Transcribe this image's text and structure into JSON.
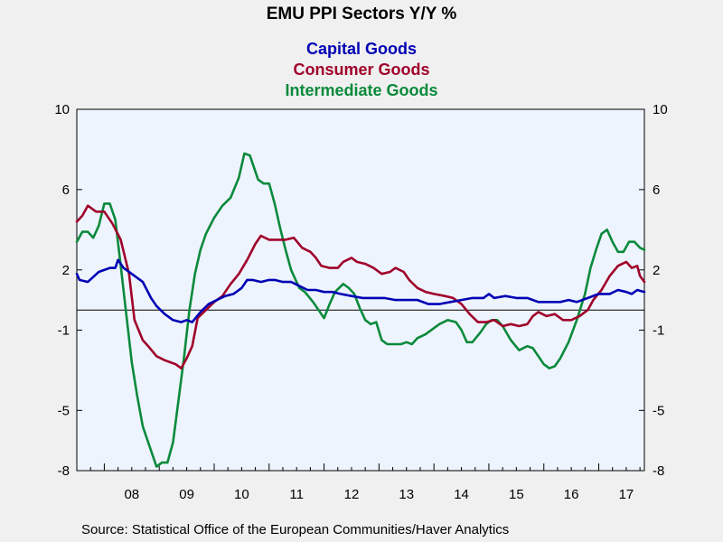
{
  "chart_data": {
    "type": "line",
    "title": "EMU PPI Sectors Y/Y %",
    "source": "Source:  Statistical Office of the European Communities/Haver Analytics",
    "x_range": [
      2007.5,
      2017.83
    ],
    "ylim": [
      -8,
      10
    ],
    "y_ticks": [
      10,
      6,
      2,
      -1,
      -5,
      -8
    ],
    "x_tick_labels": [
      "08",
      "09",
      "10",
      "11",
      "12",
      "13",
      "14",
      "15",
      "16",
      "17"
    ],
    "zero_line": 0,
    "grid": false,
    "legend_position": "top-center",
    "colors": {
      "capital": "#0000b4",
      "consumer": "#a0002a",
      "intermediate": "#0a8a3c",
      "plot_bg": "#eef4fe",
      "page_bg": "#f0f0f0"
    },
    "series": [
      {
        "name": "Capital Goods",
        "color": "#0000b4",
        "points": [
          [
            2007.5,
            1.8
          ],
          [
            2007.55,
            1.5
          ],
          [
            2007.7,
            1.4
          ],
          [
            2007.9,
            1.9
          ],
          [
            2008.1,
            2.1
          ],
          [
            2008.2,
            2.1
          ],
          [
            2008.25,
            2.5
          ],
          [
            2008.35,
            2.1
          ],
          [
            2008.5,
            1.8
          ],
          [
            2008.7,
            1.4
          ],
          [
            2008.85,
            0.6
          ],
          [
            2008.95,
            0.2
          ],
          [
            2009.1,
            -0.2
          ],
          [
            2009.25,
            -0.5
          ],
          [
            2009.4,
            -0.6
          ],
          [
            2009.5,
            -0.5
          ],
          [
            2009.6,
            -0.6
          ],
          [
            2009.75,
            -0.1
          ],
          [
            2009.9,
            0.3
          ],
          [
            2010.05,
            0.5
          ],
          [
            2010.2,
            0.7
          ],
          [
            2010.35,
            0.8
          ],
          [
            2010.5,
            1.1
          ],
          [
            2010.6,
            1.5
          ],
          [
            2010.7,
            1.5
          ],
          [
            2010.85,
            1.4
          ],
          [
            2011.0,
            1.5
          ],
          [
            2011.1,
            1.5
          ],
          [
            2011.25,
            1.4
          ],
          [
            2011.4,
            1.4
          ],
          [
            2011.55,
            1.2
          ],
          [
            2011.7,
            1.0
          ],
          [
            2011.85,
            1.0
          ],
          [
            2012.0,
            0.9
          ],
          [
            2012.15,
            0.9
          ],
          [
            2012.3,
            0.8
          ],
          [
            2012.5,
            0.7
          ],
          [
            2012.7,
            0.6
          ],
          [
            2012.9,
            0.6
          ],
          [
            2013.1,
            0.6
          ],
          [
            2013.3,
            0.5
          ],
          [
            2013.5,
            0.5
          ],
          [
            2013.7,
            0.5
          ],
          [
            2013.9,
            0.3
          ],
          [
            2014.0,
            0.3
          ],
          [
            2014.1,
            0.3
          ],
          [
            2014.3,
            0.4
          ],
          [
            2014.5,
            0.5
          ],
          [
            2014.7,
            0.6
          ],
          [
            2014.9,
            0.6
          ],
          [
            2015.0,
            0.8
          ],
          [
            2015.1,
            0.6
          ],
          [
            2015.3,
            0.7
          ],
          [
            2015.5,
            0.6
          ],
          [
            2015.7,
            0.6
          ],
          [
            2015.9,
            0.4
          ],
          [
            2016.1,
            0.4
          ],
          [
            2016.3,
            0.4
          ],
          [
            2016.45,
            0.5
          ],
          [
            2016.6,
            0.4
          ],
          [
            2016.8,
            0.6
          ],
          [
            2017.0,
            0.8
          ],
          [
            2017.2,
            0.8
          ],
          [
            2017.35,
            1.0
          ],
          [
            2017.5,
            0.9
          ],
          [
            2017.6,
            0.8
          ],
          [
            2017.7,
            1.0
          ],
          [
            2017.83,
            0.9
          ]
        ]
      },
      {
        "name": "Consumer Goods",
        "color": "#a0002a",
        "points": [
          [
            2007.5,
            4.4
          ],
          [
            2007.6,
            4.7
          ],
          [
            2007.7,
            5.2
          ],
          [
            2007.85,
            4.9
          ],
          [
            2008.0,
            4.9
          ],
          [
            2008.15,
            4.3
          ],
          [
            2008.3,
            3.5
          ],
          [
            2008.45,
            1.8
          ],
          [
            2008.55,
            -0.5
          ],
          [
            2008.7,
            -1.5
          ],
          [
            2008.8,
            -1.8
          ],
          [
            2008.95,
            -2.3
          ],
          [
            2009.1,
            -2.5
          ],
          [
            2009.2,
            -2.6
          ],
          [
            2009.3,
            -2.7
          ],
          [
            2009.4,
            -2.9
          ],
          [
            2009.5,
            -2.4
          ],
          [
            2009.6,
            -1.8
          ],
          [
            2009.7,
            -0.4
          ],
          [
            2009.85,
            0.0
          ],
          [
            2010.0,
            0.4
          ],
          [
            2010.15,
            0.7
          ],
          [
            2010.3,
            1.3
          ],
          [
            2010.45,
            1.8
          ],
          [
            2010.6,
            2.5
          ],
          [
            2010.75,
            3.3
          ],
          [
            2010.85,
            3.7
          ],
          [
            2011.0,
            3.5
          ],
          [
            2011.15,
            3.5
          ],
          [
            2011.3,
            3.5
          ],
          [
            2011.45,
            3.6
          ],
          [
            2011.6,
            3.1
          ],
          [
            2011.75,
            2.9
          ],
          [
            2011.85,
            2.6
          ],
          [
            2011.95,
            2.2
          ],
          [
            2012.1,
            2.1
          ],
          [
            2012.25,
            2.1
          ],
          [
            2012.35,
            2.4
          ],
          [
            2012.5,
            2.6
          ],
          [
            2012.6,
            2.4
          ],
          [
            2012.75,
            2.3
          ],
          [
            2012.9,
            2.1
          ],
          [
            2013.05,
            1.8
          ],
          [
            2013.2,
            1.9
          ],
          [
            2013.3,
            2.1
          ],
          [
            2013.45,
            1.9
          ],
          [
            2013.55,
            1.5
          ],
          [
            2013.7,
            1.1
          ],
          [
            2013.85,
            0.9
          ],
          [
            2014.0,
            0.8
          ],
          [
            2014.2,
            0.7
          ],
          [
            2014.35,
            0.6
          ],
          [
            2014.5,
            0.3
          ],
          [
            2014.65,
            -0.2
          ],
          [
            2014.8,
            -0.6
          ],
          [
            2014.95,
            -0.6
          ],
          [
            2015.1,
            -0.5
          ],
          [
            2015.25,
            -0.8
          ],
          [
            2015.4,
            -0.7
          ],
          [
            2015.55,
            -0.8
          ],
          [
            2015.7,
            -0.7
          ],
          [
            2015.8,
            -0.3
          ],
          [
            2015.9,
            -0.1
          ],
          [
            2016.05,
            -0.3
          ],
          [
            2016.2,
            -0.2
          ],
          [
            2016.35,
            -0.5
          ],
          [
            2016.5,
            -0.5
          ],
          [
            2016.65,
            -0.3
          ],
          [
            2016.8,
            0.0
          ],
          [
            2016.9,
            0.5
          ],
          [
            2017.05,
            1.0
          ],
          [
            2017.2,
            1.7
          ],
          [
            2017.35,
            2.2
          ],
          [
            2017.5,
            2.4
          ],
          [
            2017.6,
            2.1
          ],
          [
            2017.7,
            2.2
          ],
          [
            2017.75,
            1.7
          ],
          [
            2017.83,
            1.4
          ]
        ]
      },
      {
        "name": "Intermediate Goods",
        "color": "#0a8a3c",
        "points": [
          [
            2007.5,
            3.4
          ],
          [
            2007.6,
            3.9
          ],
          [
            2007.7,
            3.9
          ],
          [
            2007.8,
            3.6
          ],
          [
            2007.9,
            4.2
          ],
          [
            2008.0,
            5.3
          ],
          [
            2008.1,
            5.3
          ],
          [
            2008.2,
            4.5
          ],
          [
            2008.3,
            2.2
          ],
          [
            2008.4,
            -0.2
          ],
          [
            2008.5,
            -2.6
          ],
          [
            2008.6,
            -4.3
          ],
          [
            2008.7,
            -5.8
          ],
          [
            2008.85,
            -7.0
          ],
          [
            2008.95,
            -7.8
          ],
          [
            2009.05,
            -7.6
          ],
          [
            2009.15,
            -7.6
          ],
          [
            2009.25,
            -6.6
          ],
          [
            2009.35,
            -4.5
          ],
          [
            2009.45,
            -2.4
          ],
          [
            2009.55,
            0.0
          ],
          [
            2009.65,
            1.8
          ],
          [
            2009.75,
            3.0
          ],
          [
            2009.85,
            3.8
          ],
          [
            2010.0,
            4.6
          ],
          [
            2010.15,
            5.2
          ],
          [
            2010.3,
            5.6
          ],
          [
            2010.45,
            6.6
          ],
          [
            2010.55,
            7.8
          ],
          [
            2010.65,
            7.7
          ],
          [
            2010.8,
            6.5
          ],
          [
            2010.9,
            6.3
          ],
          [
            2011.0,
            6.3
          ],
          [
            2011.1,
            5.3
          ],
          [
            2011.2,
            4.1
          ],
          [
            2011.3,
            3.0
          ],
          [
            2011.4,
            2.0
          ],
          [
            2011.55,
            1.1
          ],
          [
            2011.65,
            0.9
          ],
          [
            2011.8,
            0.4
          ],
          [
            2011.9,
            0.0
          ],
          [
            2012.0,
            -0.4
          ],
          [
            2012.1,
            0.3
          ],
          [
            2012.2,
            0.9
          ],
          [
            2012.35,
            1.3
          ],
          [
            2012.45,
            1.1
          ],
          [
            2012.55,
            0.8
          ],
          [
            2012.65,
            0.1
          ],
          [
            2012.75,
            -0.5
          ],
          [
            2012.85,
            -0.7
          ],
          [
            2012.95,
            -0.6
          ],
          [
            2013.05,
            -1.5
          ],
          [
            2013.15,
            -1.7
          ],
          [
            2013.3,
            -1.7
          ],
          [
            2013.4,
            -1.7
          ],
          [
            2013.5,
            -1.6
          ],
          [
            2013.6,
            -1.7
          ],
          [
            2013.7,
            -1.4
          ],
          [
            2013.85,
            -1.2
          ],
          [
            2014.0,
            -0.9
          ],
          [
            2014.1,
            -0.7
          ],
          [
            2014.25,
            -0.5
          ],
          [
            2014.4,
            -0.6
          ],
          [
            2014.5,
            -1.0
          ],
          [
            2014.6,
            -1.6
          ],
          [
            2014.7,
            -1.6
          ],
          [
            2014.85,
            -1.1
          ],
          [
            2014.95,
            -0.7
          ],
          [
            2015.05,
            -0.5
          ],
          [
            2015.15,
            -0.5
          ],
          [
            2015.25,
            -0.8
          ],
          [
            2015.4,
            -1.5
          ],
          [
            2015.55,
            -2.0
          ],
          [
            2015.7,
            -1.8
          ],
          [
            2015.8,
            -1.9
          ],
          [
            2015.9,
            -2.3
          ],
          [
            2016.0,
            -2.7
          ],
          [
            2016.1,
            -2.9
          ],
          [
            2016.2,
            -2.8
          ],
          [
            2016.3,
            -2.4
          ],
          [
            2016.45,
            -1.6
          ],
          [
            2016.6,
            -0.5
          ],
          [
            2016.75,
            0.8
          ],
          [
            2016.85,
            2.1
          ],
          [
            2016.95,
            3.0
          ],
          [
            2017.05,
            3.8
          ],
          [
            2017.15,
            4.0
          ],
          [
            2017.25,
            3.4
          ],
          [
            2017.35,
            2.9
          ],
          [
            2017.45,
            2.9
          ],
          [
            2017.55,
            3.4
          ],
          [
            2017.65,
            3.4
          ],
          [
            2017.75,
            3.1
          ],
          [
            2017.83,
            3.0
          ]
        ]
      }
    ]
  }
}
